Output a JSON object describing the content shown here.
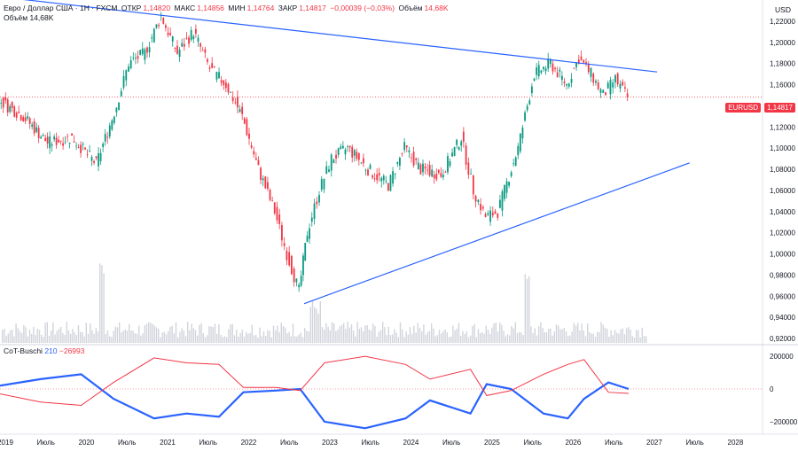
{
  "header": {
    "symbol": "Евро / Доллар США · 1Н · FXCM",
    "open_label": "ОТКР",
    "open": "1,14820",
    "high_label": "МАКС",
    "high": "1,14856",
    "low_label": "МИН",
    "low": "1,14764",
    "close_label": "ЗАКР",
    "close": "1,14817",
    "change": "−0,00039 (−0,03%)",
    "volume_label": "Объём",
    "volume": "14,68K",
    "volume_line": "Объём  14,68K"
  },
  "currency": "USD",
  "price_badge": {
    "symbol": "EURUSD",
    "price": "1,14817"
  },
  "indicator": {
    "name": "CoT-Buschi",
    "val1": "210",
    "val2": "−26993"
  },
  "colors": {
    "up": "#089981",
    "down": "#f23645",
    "trend": "#2962ff",
    "cot_blue": "#2962ff",
    "cot_red": "#f23645"
  },
  "chart_data": [
    {
      "type": "line",
      "title": "Евро / Доллар США · 1Н · FXCM",
      "ylabel": "USD",
      "y_ticks": [
        "1,22000",
        "1,20000",
        "1,18000",
        "1,16000",
        "1,14000",
        "1,12000",
        "1,10000",
        "1,08000",
        "1,06000",
        "1,04000",
        "1,02000",
        "1,00000",
        "0,98000",
        "0,96000",
        "0,94000",
        "0,92000"
      ],
      "x_ticks": [
        "2019",
        "Июль",
        "2020",
        "Июль",
        "2021",
        "Июль",
        "2022",
        "Июль",
        "2023",
        "Июль",
        "2024",
        "Июль",
        "2025",
        "Июль",
        "2026",
        "Июль",
        "2027",
        "Июль",
        "2028"
      ],
      "ylim": [
        0.915,
        1.24
      ],
      "series": [
        {
          "x": [
            2019.0,
            2019.3,
            2019.6,
            2019.9,
            2020.2,
            2020.45,
            2020.6,
            2020.8,
            2021.0,
            2021.2,
            2021.4,
            2021.6,
            2021.8,
            2022.0,
            2022.2,
            2022.4,
            2022.55,
            2022.7,
            2022.8,
            2022.95,
            2023.1,
            2023.3,
            2023.55,
            2023.8,
            2024.0,
            2024.2,
            2024.45,
            2024.7,
            2024.85,
            2025.0,
            2025.15,
            2025.4,
            2025.6,
            2025.8,
            2026.0,
            2026.15,
            2026.3,
            2026.45,
            2026.6,
            2026.75
          ],
          "values": [
            1.145,
            1.13,
            1.105,
            1.11,
            1.085,
            1.14,
            1.18,
            1.19,
            1.225,
            1.19,
            1.21,
            1.175,
            1.16,
            1.13,
            1.08,
            1.04,
            1.0,
            0.965,
            1.02,
            1.06,
            1.09,
            1.1,
            1.08,
            1.065,
            1.1,
            1.08,
            1.075,
            1.11,
            1.06,
            1.035,
            1.04,
            1.1,
            1.17,
            1.18,
            1.16,
            1.185,
            1.17,
            1.15,
            1.165,
            1.148
          ]
        }
      ],
      "trendlines": [
        {
          "x": [
            2019.0,
            2027.1
          ],
          "values": [
            1.243,
            1.172
          ]
        },
        {
          "x": [
            2022.75,
            2027.5
          ],
          "values": [
            0.953,
            1.086
          ]
        }
      ],
      "hline": 1.14817,
      "volume": [
        14.68
      ]
    },
    {
      "type": "line",
      "title": "CoT-Buschi",
      "y_ticks": [
        "200000",
        "0",
        "−200000"
      ],
      "ylim": [
        -260000,
        260000
      ],
      "series": [
        {
          "name": "",
          "x": [
            2019.0,
            2019.5,
            2020.0,
            2020.4,
            2020.9,
            2021.3,
            2021.7,
            2022.0,
            2022.4,
            2022.7,
            2023.0,
            2023.5,
            2024.0,
            2024.3,
            2024.8,
            2025.0,
            2025.3,
            2025.7,
            2026.0,
            2026.2,
            2026.5,
            2026.75
          ],
          "values": [
            20000,
            60000,
            90000,
            -60000,
            -180000,
            -150000,
            -170000,
            -20000,
            -10000,
            0,
            -200000,
            -240000,
            -180000,
            -70000,
            -150000,
            30000,
            0,
            -150000,
            -180000,
            -60000,
            40000,
            210
          ]
        },
        {
          "name": "",
          "x": [
            2019.0,
            2019.5,
            2020.0,
            2020.4,
            2020.9,
            2021.3,
            2021.7,
            2022.0,
            2022.4,
            2022.7,
            2023.0,
            2023.5,
            2024.0,
            2024.3,
            2024.8,
            2025.0,
            2025.3,
            2025.7,
            2026.0,
            2026.2,
            2026.5,
            2026.75
          ],
          "values": [
            -30000,
            -80000,
            -100000,
            40000,
            190000,
            160000,
            150000,
            10000,
            10000,
            -10000,
            160000,
            200000,
            150000,
            60000,
            120000,
            -40000,
            -10000,
            90000,
            150000,
            180000,
            -20000,
            -26993
          ]
        }
      ]
    }
  ]
}
